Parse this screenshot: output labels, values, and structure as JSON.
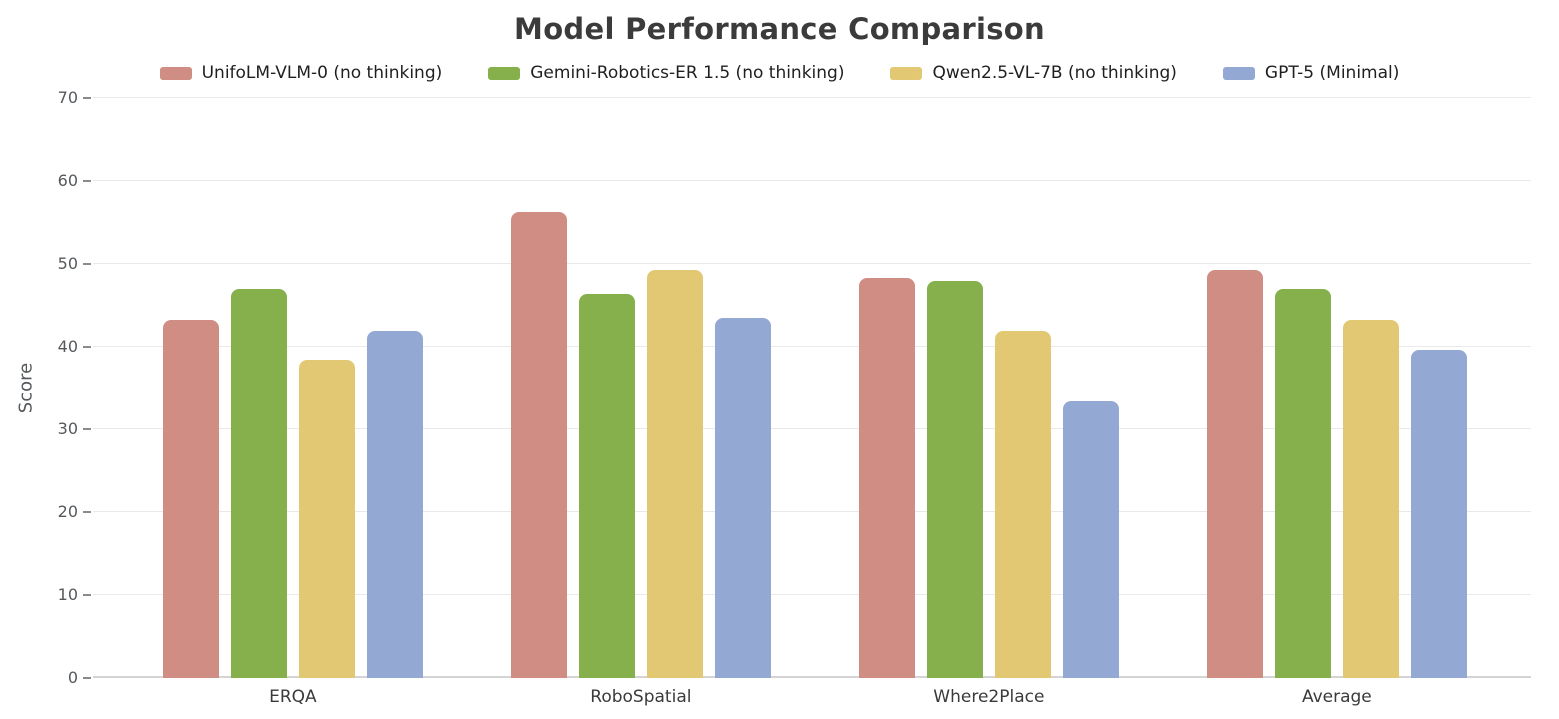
{
  "chart_data": {
    "type": "bar",
    "title": "Model Performance Comparison",
    "ylabel": "Score",
    "xlabel": "",
    "categories": [
      "ERQA",
      "RoboSpatial",
      "Where2Place",
      "Average"
    ],
    "series": [
      {
        "name": "UnifoLM-VLM-0 (no thinking)",
        "color": "#cf8d84",
        "values": [
          43.2,
          56.2,
          48.3,
          49.2
        ]
      },
      {
        "name": "Gemini-Robotics-ER 1.5 (no thinking)",
        "color": "#85b04b",
        "values": [
          46.9,
          46.3,
          47.9,
          47.0
        ]
      },
      {
        "name": "Qwen2.5-VL-7B (no thinking)",
        "color": "#e3c873",
        "values": [
          38.4,
          49.2,
          41.9,
          43.2
        ]
      },
      {
        "name": "GPT-5 (Minimal)",
        "color": "#93a8d3",
        "values": [
          41.9,
          43.4,
          33.4,
          39.6
        ]
      }
    ],
    "yticks": [
      0,
      10,
      20,
      30,
      40,
      50,
      60,
      70
    ],
    "ylim": [
      0,
      72
    ],
    "grid": "horizontal",
    "legend_position": "top-center"
  },
  "colors": {
    "background": "#ffffff",
    "title_text": "#3b3b3b",
    "tick_label": "#55595c",
    "grid_line": "#e9e9e9",
    "axis_line": "#d4d4d4",
    "category_label": "#3a3a3a",
    "legend_text": "#1f1f1f"
  }
}
